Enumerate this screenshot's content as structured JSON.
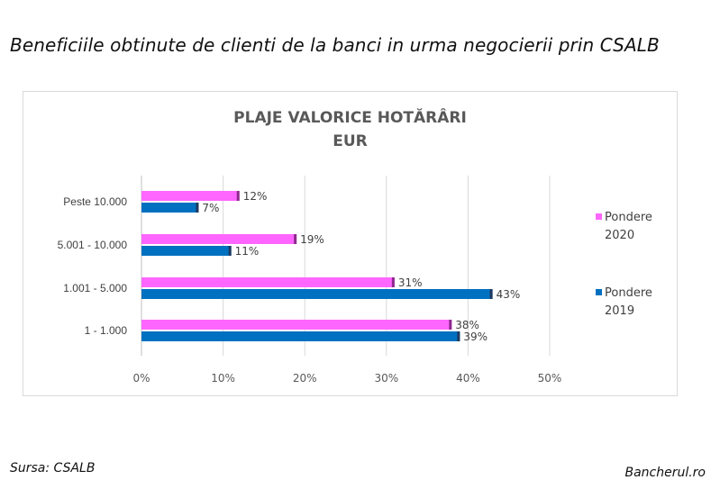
{
  "headline": "Beneficiile obtinute de clienti de la banci in urma negocierii prin CSALB",
  "source": "Sursa: CSALB",
  "watermark": "Bancherul.ro",
  "chart_data": {
    "type": "bar",
    "orientation": "horizontal",
    "title": "PLAJE VALORICE HOTĂRÂRI\nEUR",
    "categories": [
      "Peste 10.000",
      "5.001 - 10.000",
      "1.001 - 5.000",
      "1 - 1.000"
    ],
    "series": [
      {
        "name": "Pondere\n2020",
        "color": "#ff66ff",
        "values": [
          12,
          19,
          31,
          38
        ],
        "labels": [
          "12%",
          "19%",
          "31%",
          "38%"
        ]
      },
      {
        "name": "Pondere\n2019",
        "color": "#0070c0",
        "values": [
          7,
          11,
          43,
          39
        ],
        "labels": [
          "7%",
          "11%",
          "43%",
          "39%"
        ]
      }
    ],
    "x_ticks": [
      "0%",
      "10%",
      "20%",
      "30%",
      "40%",
      "50%"
    ],
    "xlim": [
      0,
      50
    ],
    "grid": "vertical",
    "legend": "right"
  }
}
